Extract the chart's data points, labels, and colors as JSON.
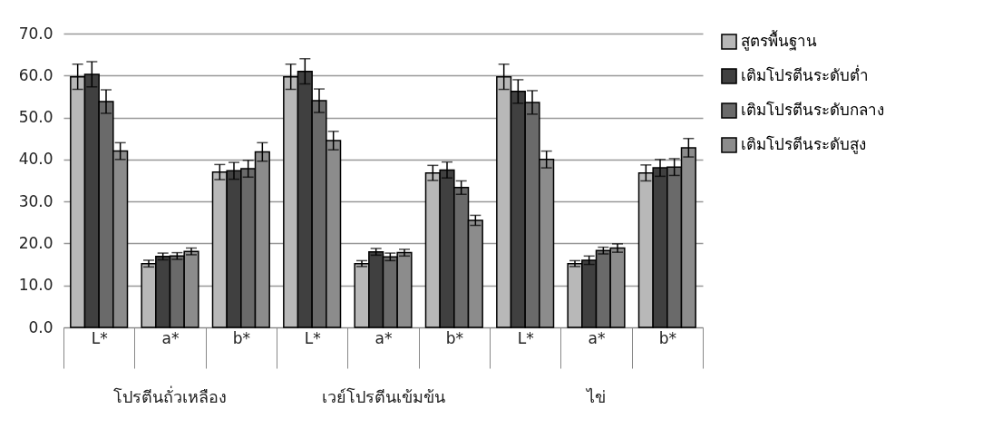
{
  "chart_data": {
    "type": "bar",
    "categories": [
      "L*",
      "a*",
      "b*",
      "L*",
      "a*",
      "b*",
      "L*",
      "a*",
      "b*"
    ],
    "annotations": [
      "โปรตีนถั่วเหลือง",
      "เวย์โปรตีนเข้มข้น",
      "ไข่"
    ],
    "series": [
      {
        "name": "สูตรพื้นฐาน",
        "color": "#b8b8b8",
        "values": [
          59.7,
          15.2,
          37.0,
          59.7,
          15.2,
          36.8,
          59.7,
          15.2,
          36.8
        ],
        "errors": [
          3.0,
          0.8,
          1.8,
          3.0,
          0.7,
          1.8,
          3.0,
          0.7,
          1.9
        ]
      },
      {
        "name": "เติมโปรตีนระดับต่ำ",
        "color": "#404040",
        "values": [
          60.3,
          16.9,
          37.3,
          61.0,
          18.0,
          37.5,
          56.2,
          16.0,
          38.0
        ],
        "errors": [
          3.0,
          0.8,
          2.0,
          3.0,
          0.8,
          1.9,
          2.8,
          1.0,
          2.0
        ]
      },
      {
        "name": "เติมโปรตีนระดับกลาง",
        "color": "#6a6a6a",
        "values": [
          53.8,
          17.0,
          37.8,
          54.0,
          16.8,
          33.3,
          53.6,
          18.3,
          38.2
        ],
        "errors": [
          2.8,
          0.8,
          2.0,
          2.8,
          0.9,
          1.6,
          2.8,
          0.8,
          2.0
        ]
      },
      {
        "name": "เติมโปรตีนระดับสูง",
        "color": "#8c8c8c",
        "values": [
          42.0,
          18.1,
          41.8,
          44.5,
          17.8,
          25.5,
          40.0,
          18.9,
          42.8
        ],
        "errors": [
          2.0,
          0.8,
          2.2,
          2.2,
          0.8,
          1.2,
          2.0,
          1.0,
          2.2
        ]
      }
    ],
    "ylim": [
      0,
      70
    ],
    "yticks": [
      {
        "value": 0,
        "label": "0.0"
      },
      {
        "value": 10,
        "label": "10.0"
      },
      {
        "value": 20,
        "label": "20.0"
      },
      {
        "value": 30,
        "label": "30.0"
      },
      {
        "value": 40,
        "label": "40.0"
      },
      {
        "value": 50,
        "label": "50.0"
      },
      {
        "value": 60,
        "label": "60.0"
      },
      {
        "value": 70,
        "label": "70.0"
      }
    ],
    "grid": "y",
    "legend": "right"
  }
}
